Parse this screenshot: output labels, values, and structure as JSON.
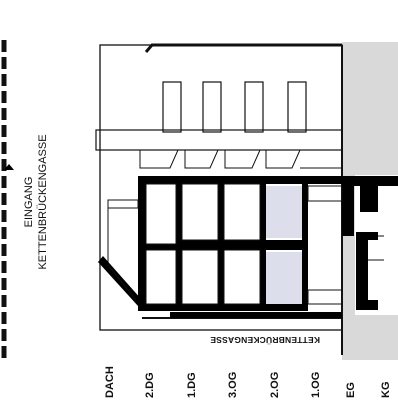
{
  "entrance_label": {
    "line1": "EINGANG",
    "line2": "KETTENBRÜCKENGASSE"
  },
  "street_label": "KETTENBRÜCKENGASSE",
  "floor_labels": [
    "DACH",
    "2.DG",
    "1.DG",
    "3.OG",
    "2.OG",
    "1.OG",
    "EG",
    "KG"
  ],
  "colors": {
    "wall": "#000000",
    "line": "#111111",
    "ground": "#d9d9da",
    "highlight": "#dcdfeb",
    "background": "#ffffff"
  },
  "icons": [
    "entrance-arrow-icon"
  ]
}
